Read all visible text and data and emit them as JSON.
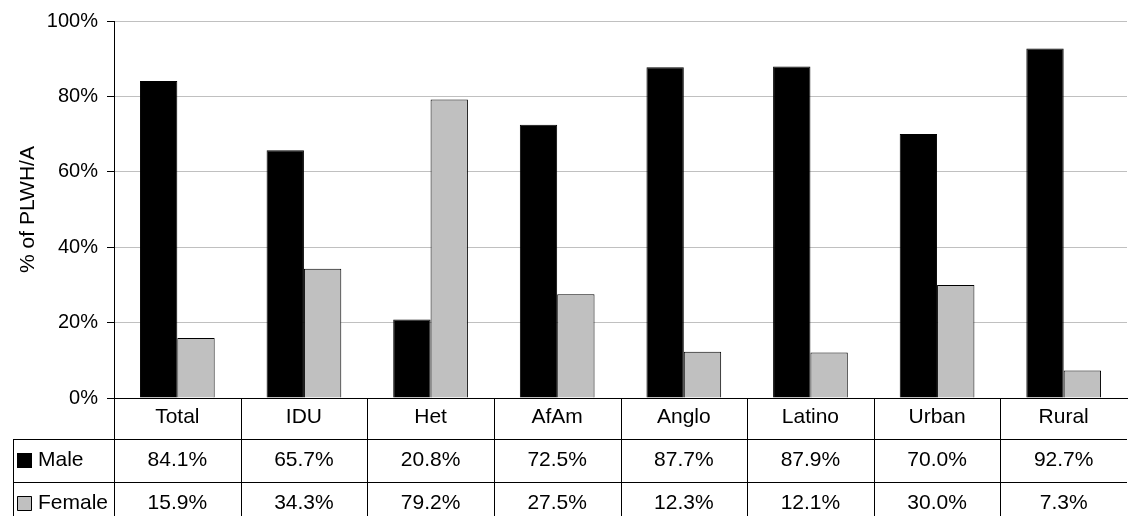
{
  "chart_data": {
    "type": "bar",
    "ylabel": "% of PLWH/A",
    "categories": [
      "Total",
      "IDU",
      "Het",
      "AfAm",
      "Anglo",
      "Latino",
      "Urban",
      "Rural"
    ],
    "series": [
      {
        "name": "Male",
        "color": "#000000",
        "values": [
          84.1,
          65.7,
          20.8,
          72.5,
          87.7,
          87.9,
          70.0,
          92.7
        ],
        "value_labels": [
          "84.1%",
          "65.7%",
          "20.8%",
          "72.5%",
          "87.7%",
          "87.9%",
          "70.0%",
          "92.7%"
        ]
      },
      {
        "name": "Female",
        "color": "#c0c0c0",
        "values": [
          15.9,
          34.3,
          79.2,
          27.5,
          12.3,
          12.1,
          30.0,
          7.3
        ],
        "value_labels": [
          "15.9%",
          "34.3%",
          "79.2%",
          "27.5%",
          "12.3%",
          "12.1%",
          "30.0%",
          "7.3%"
        ]
      }
    ],
    "ylim": [
      0,
      100
    ],
    "yticks": [
      {
        "value": 0,
        "label": "0%"
      },
      {
        "value": 20,
        "label": "20%"
      },
      {
        "value": 40,
        "label": "40%"
      },
      {
        "value": 60,
        "label": "60%"
      },
      {
        "value": 80,
        "label": "80%"
      },
      {
        "value": 100,
        "label": "100%"
      }
    ],
    "grid": "y",
    "legend": "bottom left"
  }
}
